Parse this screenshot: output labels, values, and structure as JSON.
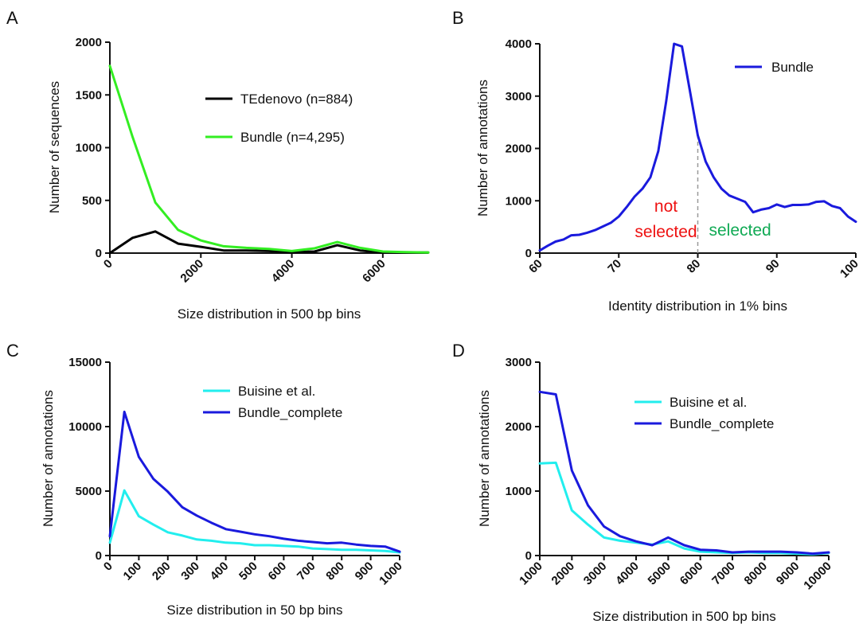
{
  "chart_data": [
    {
      "panel": "A",
      "type": "line",
      "xlabel": "Size distribution in 500 bp bins",
      "ylabel": "Number of sequences",
      "xlim": [
        0,
        7000
      ],
      "ylim": [
        0,
        2000
      ],
      "xticks": [
        0,
        2000,
        4000,
        6000
      ],
      "yticks": [
        0,
        500,
        1000,
        1500,
        2000
      ],
      "legend_position": "top-right",
      "series": [
        {
          "name": "TEdenovo (n=884)",
          "color": "#000000",
          "x": [
            0,
            500,
            1000,
            1500,
            2000,
            2500,
            3000,
            3500,
            4000,
            4500,
            5000,
            5500,
            6000,
            6500,
            7000
          ],
          "y": [
            0,
            145,
            205,
            90,
            60,
            25,
            25,
            20,
            10,
            15,
            75,
            25,
            5,
            5,
            5
          ]
        },
        {
          "name": "Bundle (n=4,295)",
          "color": "#33ee22",
          "x": [
            0,
            500,
            1000,
            1500,
            2000,
            2500,
            3000,
            3500,
            4000,
            4500,
            5000,
            5500,
            6000,
            6500,
            7000
          ],
          "y": [
            1775,
            1100,
            480,
            220,
            120,
            65,
            50,
            40,
            20,
            45,
            105,
            50,
            15,
            10,
            5
          ]
        }
      ]
    },
    {
      "panel": "B",
      "type": "line",
      "xlabel": "Identity distribution in 1% bins",
      "ylabel": "Number of annotations",
      "xlim": [
        60,
        100
      ],
      "ylim": [
        0,
        4000
      ],
      "xticks": [
        60,
        70,
        80,
        90,
        100
      ],
      "yticks": [
        0,
        1000,
        2000,
        3000,
        4000
      ],
      "legend_position": "top-right",
      "threshold_x": 80,
      "annotations": [
        {
          "text": "not",
          "color": "#ee1111"
        },
        {
          "text": "selected",
          "color": "#ee1111"
        },
        {
          "text": "selected",
          "color": "#11aa55"
        }
      ],
      "series": [
        {
          "name": "Bundle",
          "color": "#1a1add",
          "x": [
            60,
            61,
            62,
            63,
            64,
            65,
            66,
            67,
            68,
            69,
            70,
            71,
            72,
            73,
            74,
            75,
            76,
            77,
            78,
            79,
            80,
            81,
            82,
            83,
            84,
            85,
            86,
            87,
            88,
            89,
            90,
            91,
            92,
            93,
            94,
            95,
            96,
            97,
            98,
            99,
            100
          ],
          "y": [
            50,
            140,
            220,
            260,
            340,
            350,
            390,
            440,
            510,
            580,
            700,
            880,
            1080,
            1230,
            1450,
            1950,
            2900,
            4000,
            3950,
            3100,
            2250,
            1750,
            1450,
            1230,
            1100,
            1040,
            980,
            780,
            830,
            860,
            930,
            880,
            920,
            920,
            930,
            980,
            990,
            900,
            860,
            700,
            600
          ]
        }
      ]
    },
    {
      "panel": "C",
      "type": "line",
      "xlabel": "Size distribution in 50 bp bins",
      "ylabel": "Number of annotations",
      "xlim": [
        0,
        1000
      ],
      "ylim": [
        0,
        15000
      ],
      "xticks": [
        0,
        100,
        200,
        300,
        400,
        500,
        600,
        700,
        800,
        900,
        1000
      ],
      "yticks": [
        0,
        5000,
        10000,
        15000
      ],
      "legend_position": "top-right",
      "series": [
        {
          "name": "Buisine et al.",
          "color": "#22eeee",
          "x": [
            0,
            50,
            100,
            150,
            200,
            250,
            300,
            350,
            400,
            450,
            500,
            550,
            600,
            650,
            700,
            750,
            800,
            850,
            900,
            950,
            1000
          ],
          "y": [
            1000,
            5050,
            3050,
            2400,
            1800,
            1550,
            1250,
            1150,
            1000,
            950,
            800,
            800,
            750,
            700,
            550,
            500,
            450,
            450,
            400,
            350,
            250
          ]
        },
        {
          "name": "Bundle_complete",
          "color": "#1a1add",
          "x": [
            0,
            50,
            100,
            150,
            200,
            250,
            300,
            350,
            400,
            450,
            500,
            550,
            600,
            650,
            700,
            750,
            800,
            850,
            900,
            950,
            1000
          ],
          "y": [
            1500,
            11150,
            7650,
            5950,
            4950,
            3750,
            3100,
            2550,
            2050,
            1850,
            1650,
            1500,
            1300,
            1150,
            1050,
            950,
            1000,
            850,
            750,
            700,
            300
          ]
        }
      ]
    },
    {
      "panel": "D",
      "type": "line",
      "xlabel": "Size distribution in 500 bp bins",
      "ylabel": "Number of annotations",
      "xlim": [
        1000,
        10000
      ],
      "ylim": [
        0,
        3000
      ],
      "xticks": [
        1000,
        2000,
        3000,
        4000,
        5000,
        6000,
        7000,
        8000,
        9000,
        10000
      ],
      "yticks": [
        0,
        1000,
        2000,
        3000
      ],
      "legend_position": "top-right",
      "series": [
        {
          "name": "Buisine et al.",
          "color": "#22eeee",
          "x": [
            1000,
            1500,
            2000,
            2500,
            3000,
            3500,
            4000,
            4500,
            5000,
            5500,
            6000,
            6500,
            7000,
            7500,
            8000,
            8500,
            9000,
            9500,
            10000
          ],
          "y": [
            1430,
            1440,
            700,
            480,
            280,
            230,
            200,
            170,
            220,
            110,
            60,
            50,
            40,
            50,
            40,
            40,
            30,
            20,
            40
          ],
          "description_hint": ""
        },
        {
          "name": "Bundle_complete",
          "color": "#1a1add",
          "x": [
            1000,
            1500,
            2000,
            2500,
            3000,
            3500,
            4000,
            4500,
            5000,
            5500,
            6000,
            6500,
            7000,
            7500,
            8000,
            8500,
            9000,
            9500,
            10000
          ],
          "y": [
            2540,
            2500,
            1320,
            780,
            450,
            300,
            220,
            160,
            280,
            160,
            90,
            80,
            50,
            60,
            60,
            60,
            50,
            30,
            50
          ]
        }
      ]
    }
  ]
}
